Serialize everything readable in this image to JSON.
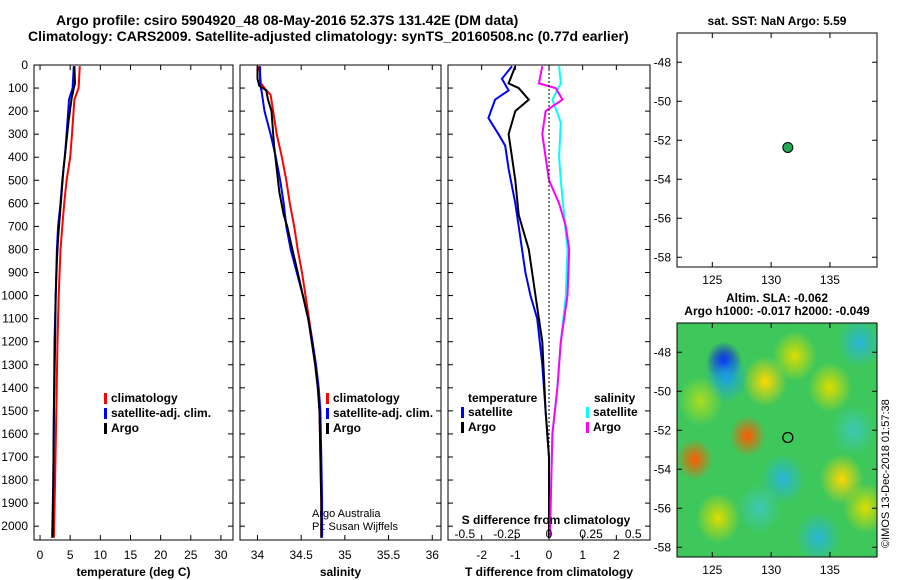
{
  "header": {
    "title_line1": "Argo profile: csiro 5904920_48 08-May-2016 52.37S 131.42E (DM data)",
    "title_line2": "Climatology: CARS2009. Satellite-adjusted climatology: synTS_20160508.nc (0.77d earlier)"
  },
  "colors": {
    "climatology": "#ff0000",
    "satellite": "#0000ff",
    "argo": "#000000",
    "sat_salinity": "#00ffff",
    "argo_salinity": "#ff00ff",
    "marker": "#22aa55"
  },
  "depth_axis": {
    "ticks": [
      0,
      100,
      200,
      300,
      400,
      500,
      600,
      700,
      800,
      900,
      1000,
      1100,
      1200,
      1300,
      1400,
      1500,
      1600,
      1700,
      1800,
      1900,
      2000
    ],
    "range": [
      0,
      2060
    ]
  },
  "chart_data": [
    {
      "type": "line",
      "id": "temperature",
      "xlabel": "temperature (deg C)",
      "xlim": [
        -1,
        32
      ],
      "xticks": [
        0,
        5,
        10,
        15,
        20,
        25,
        30
      ],
      "legend": [
        "climatology",
        "satellite-adj. clim.",
        "Argo"
      ],
      "series": [
        {
          "name": "climatology",
          "color": "#ff0000",
          "points": [
            [
              6.6,
              5
            ],
            [
              6.4,
              100
            ],
            [
              5.7,
              150
            ],
            [
              5.3,
              300
            ],
            [
              5.0,
              400
            ],
            [
              4.4,
              500
            ],
            [
              4.0,
              600
            ],
            [
              3.7,
              700
            ],
            [
              3.4,
              800
            ],
            [
              3.1,
              1000
            ],
            [
              2.9,
              1200
            ],
            [
              2.7,
              1500
            ],
            [
              2.5,
              1800
            ],
            [
              2.3,
              2050
            ]
          ]
        },
        {
          "name": "satellite-adj. clim.",
          "color": "#0000ff",
          "points": [
            [
              5.6,
              5
            ],
            [
              5.4,
              100
            ],
            [
              4.8,
              150
            ],
            [
              4.4,
              300
            ],
            [
              4.1,
              400
            ],
            [
              3.7,
              500
            ],
            [
              3.4,
              600
            ],
            [
              3.0,
              700
            ],
            [
              2.8,
              800
            ],
            [
              2.6,
              1000
            ],
            [
              2.4,
              1200
            ],
            [
              2.3,
              1500
            ],
            [
              2.2,
              1800
            ],
            [
              2.0,
              2050
            ]
          ]
        },
        {
          "name": "Argo",
          "color": "#000000",
          "points": [
            [
              5.7,
              5
            ],
            [
              5.8,
              80
            ],
            [
              5.6,
              100
            ],
            [
              5.2,
              150
            ],
            [
              4.7,
              250
            ],
            [
              4.3,
              350
            ],
            [
              3.9,
              450
            ],
            [
              3.6,
              550
            ],
            [
              3.3,
              650
            ],
            [
              3.0,
              750
            ],
            [
              2.8,
              850
            ],
            [
              2.6,
              1000
            ],
            [
              2.5,
              1200
            ],
            [
              2.3,
              1500
            ],
            [
              2.2,
              1800
            ],
            [
              2.1,
              2050
            ]
          ]
        }
      ]
    },
    {
      "type": "line",
      "id": "salinity",
      "xlabel": "salinity",
      "xlim": [
        33.8,
        36.1
      ],
      "xticks": [
        34,
        34.5,
        35,
        35.5,
        36
      ],
      "legend": [
        "climatology",
        "satellite-adj. clim.",
        "Argo"
      ],
      "annotation": [
        "Argo Australia",
        "PI: Susan Wijffels"
      ],
      "series": [
        {
          "name": "climatology",
          "color": "#ff0000",
          "points": [
            [
              34.02,
              5
            ],
            [
              34.04,
              80
            ],
            [
              34.08,
              100
            ],
            [
              34.15,
              130
            ],
            [
              34.18,
              200
            ],
            [
              34.22,
              300
            ],
            [
              34.28,
              400
            ],
            [
              34.33,
              500
            ],
            [
              34.37,
              600
            ],
            [
              34.42,
              700
            ],
            [
              34.46,
              800
            ],
            [
              34.51,
              900
            ],
            [
              34.55,
              1000
            ],
            [
              34.59,
              1100
            ],
            [
              34.63,
              1200
            ],
            [
              34.66,
              1300
            ],
            [
              34.69,
              1400
            ],
            [
              34.71,
              1500
            ],
            [
              34.72,
              1700
            ],
            [
              34.73,
              1900
            ],
            [
              34.73,
              2050
            ]
          ]
        },
        {
          "name": "satellite-adj. clim.",
          "color": "#0000ff",
          "points": [
            [
              34.03,
              5
            ],
            [
              34.03,
              80
            ],
            [
              34.05,
              120
            ],
            [
              34.08,
              200
            ],
            [
              34.15,
              300
            ],
            [
              34.21,
              400
            ],
            [
              34.26,
              500
            ],
            [
              34.3,
              600
            ],
            [
              34.33,
              700
            ],
            [
              34.38,
              800
            ],
            [
              34.45,
              900
            ],
            [
              34.52,
              1000
            ],
            [
              34.58,
              1100
            ],
            [
              34.63,
              1200
            ],
            [
              34.67,
              1300
            ],
            [
              34.7,
              1400
            ],
            [
              34.72,
              1500
            ],
            [
              34.73,
              1700
            ],
            [
              34.74,
              1900
            ],
            [
              34.74,
              2050
            ]
          ]
        },
        {
          "name": "Argo",
          "color": "#000000",
          "points": [
            [
              34.0,
              5
            ],
            [
              34.0,
              60
            ],
            [
              34.02,
              90
            ],
            [
              34.1,
              110
            ],
            [
              34.12,
              150
            ],
            [
              34.16,
              200
            ],
            [
              34.18,
              300
            ],
            [
              34.19,
              350
            ],
            [
              34.22,
              450
            ],
            [
              34.25,
              550
            ],
            [
              34.3,
              650
            ],
            [
              34.34,
              700
            ],
            [
              34.4,
              800
            ],
            [
              34.46,
              900
            ],
            [
              34.52,
              1000
            ],
            [
              34.58,
              1100
            ],
            [
              34.62,
              1200
            ],
            [
              34.66,
              1300
            ],
            [
              34.69,
              1400
            ],
            [
              34.71,
              1500
            ],
            [
              34.72,
              1700
            ],
            [
              34.73,
              1900
            ],
            [
              34.73,
              2050
            ]
          ]
        }
      ]
    },
    {
      "type": "line",
      "id": "difference",
      "xlabel": "T difference from climatology",
      "xlabel2": "S difference from climatology",
      "xlim": [
        -3,
        3
      ],
      "xticks": [
        -2,
        -1,
        0,
        1,
        2
      ],
      "s_ticks": [
        {
          "label": "-0.5",
          "t": -2.5
        },
        {
          "label": "-0.25",
          "t": -1.25
        },
        {
          "label": "0",
          "t": 0
        },
        {
          "label": "0.25",
          "t": 1.25
        },
        {
          "label": "0.5",
          "t": 2.5
        }
      ],
      "legend_left": {
        "title": "temperature",
        "items": [
          "satellite",
          "Argo"
        ]
      },
      "legend_right": {
        "title": "salinity",
        "items": [
          "satellite",
          "Argo"
        ]
      },
      "series": [
        {
          "name": "T satellite",
          "color": "#0000ff",
          "points": [
            [
              -1.1,
              5
            ],
            [
              -1.4,
              60
            ],
            [
              -1.2,
              110
            ],
            [
              -1.6,
              150
            ],
            [
              -1.8,
              230
            ],
            [
              -1.5,
              300
            ],
            [
              -1.3,
              350
            ],
            [
              -1.2,
              450
            ],
            [
              -1.0,
              600
            ],
            [
              -0.9,
              700
            ],
            [
              -0.7,
              900
            ],
            [
              -0.55,
              1000
            ],
            [
              -0.35,
              1100
            ],
            [
              -0.2,
              1300
            ],
            [
              -0.1,
              1500
            ],
            [
              0,
              1700
            ],
            [
              0,
              2050
            ]
          ]
        },
        {
          "name": "T Argo",
          "color": "#000000",
          "points": [
            [
              -1.0,
              5
            ],
            [
              -1.2,
              80
            ],
            [
              -0.9,
              100
            ],
            [
              -0.6,
              150
            ],
            [
              -1.0,
              200
            ],
            [
              -1.2,
              300
            ],
            [
              -1.1,
              400
            ],
            [
              -1.0,
              500
            ],
            [
              -0.9,
              650
            ],
            [
              -0.6,
              800
            ],
            [
              -0.4,
              1000
            ],
            [
              -0.2,
              1200
            ],
            [
              -0.1,
              1500
            ],
            [
              0,
              1700
            ],
            [
              0,
              2050
            ]
          ]
        },
        {
          "name": "S satellite",
          "color": "#00ffff",
          "points": [
            [
              0.3,
              5
            ],
            [
              0.35,
              80
            ],
            [
              0.1,
              150
            ],
            [
              0.35,
              250
            ],
            [
              0.3,
              400
            ],
            [
              0.35,
              500
            ],
            [
              0.45,
              650
            ],
            [
              0.55,
              800
            ],
            [
              0.5,
              1000
            ],
            [
              0.35,
              1200
            ],
            [
              0.25,
              1400
            ],
            [
              0.1,
              1600
            ],
            [
              0.05,
              1900
            ],
            [
              0.03,
              2050
            ]
          ]
        },
        {
          "name": "S Argo",
          "color": "#ff00ff",
          "points": [
            [
              -0.2,
              5
            ],
            [
              -0.3,
              80
            ],
            [
              0.2,
              100
            ],
            [
              0.4,
              150
            ],
            [
              -0.1,
              200
            ],
            [
              -0.2,
              300
            ],
            [
              -0.1,
              400
            ],
            [
              0.0,
              500
            ],
            [
              0.3,
              600
            ],
            [
              0.5,
              700
            ],
            [
              0.6,
              800
            ],
            [
              0.55,
              1000
            ],
            [
              0.35,
              1200
            ],
            [
              0.25,
              1400
            ],
            [
              0.1,
              1600
            ],
            [
              0.05,
              1900
            ],
            [
              0.03,
              2050
            ]
          ]
        }
      ]
    },
    {
      "type": "scatter",
      "id": "sst_map",
      "title": "sat. SST: NaN Argo: 5.59",
      "xlim": [
        122,
        139
      ],
      "ylim": [
        -58.5,
        -46.5
      ],
      "xticks": [
        125,
        130,
        135
      ],
      "yticks": [
        -48,
        -50,
        -52,
        -54,
        -56,
        -58
      ],
      "points": [
        {
          "lon": 131.42,
          "lat": -52.37
        }
      ]
    },
    {
      "type": "heatmap",
      "id": "sla_map",
      "title_line1": "Altim. SLA: -0.062",
      "title_line2": "Argo h1000: -0.017 h2000: -0.049",
      "side_label": "©IMOS 13-Dec-2018 01:57:38",
      "xlim": [
        122,
        139
      ],
      "ylim": [
        -58.5,
        -46.5
      ],
      "xticks": [
        125,
        130,
        135
      ],
      "yticks": [
        -48,
        -50,
        -52,
        -54,
        -56,
        -58
      ],
      "point": {
        "lon": 131.42,
        "lat": -52.37
      },
      "blobs": [
        {
          "lon": 126,
          "lat": -48.5,
          "v": -3
        },
        {
          "lon": 126.2,
          "lat": -49.3,
          "v": -2
        },
        {
          "lon": 128,
          "lat": -52.3,
          "v": 3
        },
        {
          "lon": 123.5,
          "lat": -53.5,
          "v": 3
        },
        {
          "lon": 129.5,
          "lat": -49.5,
          "v": 2
        },
        {
          "lon": 132,
          "lat": -48.2,
          "v": 1.5
        },
        {
          "lon": 135,
          "lat": -49.8,
          "v": 1.5
        },
        {
          "lon": 137.5,
          "lat": -47.5,
          "v": -1.5
        },
        {
          "lon": 136,
          "lat": -54.5,
          "v": 2
        },
        {
          "lon": 138,
          "lat": -56,
          "v": 1.5
        },
        {
          "lon": 125.5,
          "lat": -56.5,
          "v": 1.5
        },
        {
          "lon": 134,
          "lat": -57.5,
          "v": -1.5
        },
        {
          "lon": 131,
          "lat": -54.5,
          "v": -1.5
        },
        {
          "lon": 124,
          "lat": -50.5,
          "v": 1
        },
        {
          "lon": 129,
          "lat": -56,
          "v": -1
        },
        {
          "lon": 137,
          "lat": -52,
          "v": -1
        }
      ]
    }
  ]
}
